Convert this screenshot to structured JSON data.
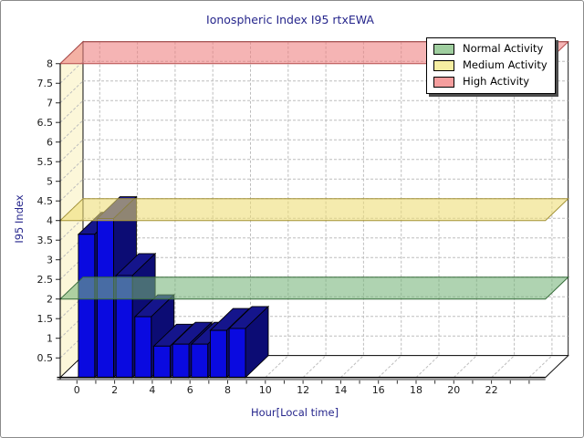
{
  "chart_data": {
    "type": "bar",
    "projection": "3d-skew",
    "title": "Ionospheric Index I95 rtxEWA",
    "xlabel": "Hour[Local time]",
    "ylabel": "I95 Index",
    "x": [
      0,
      1,
      2,
      3,
      4,
      5,
      6,
      7,
      8
    ],
    "values": [
      3.65,
      4.05,
      2.6,
      1.55,
      0.8,
      0.85,
      0.85,
      1.2,
      1.25
    ],
    "bar_width_hours": 1,
    "xlim": [
      0,
      24
    ],
    "ylim": [
      0,
      8
    ],
    "x_tick_labels": [
      "0",
      "2",
      "4",
      "6",
      "8",
      "10",
      "12",
      "14",
      "16",
      "18",
      "20",
      "22"
    ],
    "x_minor_tick_step": 1,
    "y_tick_labels": [
      "0.5",
      "1",
      "1.5",
      "2",
      "2.5",
      "3",
      "3.5",
      "4",
      "4.5",
      "5",
      "5.5",
      "6",
      "6.5",
      "7",
      "7.5",
      "8"
    ],
    "grid": "dashed",
    "legend_position": "top-right",
    "thresholds": [
      {
        "label": "Normal Activity",
        "level": 2,
        "band_color": "#76b478",
        "edge_color": "#356b38",
        "legend_color": "#9fce9f"
      },
      {
        "label": "Medium Activity",
        "level": 4,
        "band_color": "#eedc74",
        "edge_color": "#a39236",
        "legend_color": "#f6eea2"
      },
      {
        "label": "High Activity",
        "level": 8,
        "band_color": "#ee7e7e",
        "edge_color": "#b44d4d",
        "legend_color": "#f59e9e"
      }
    ],
    "colors": {
      "bar_front": "#0a0ae0",
      "bar_top": "#15158c",
      "bar_side": "#0c0c74",
      "wall_left": "#fcf7d9",
      "wall_back": "#ffffff",
      "floor": "#ffffff",
      "grid": "#bdbdbd",
      "outline": "#000000",
      "axis_shadow": "#8f8f8f",
      "title": "#26268c",
      "tick_label": "#1c1c1c"
    }
  }
}
